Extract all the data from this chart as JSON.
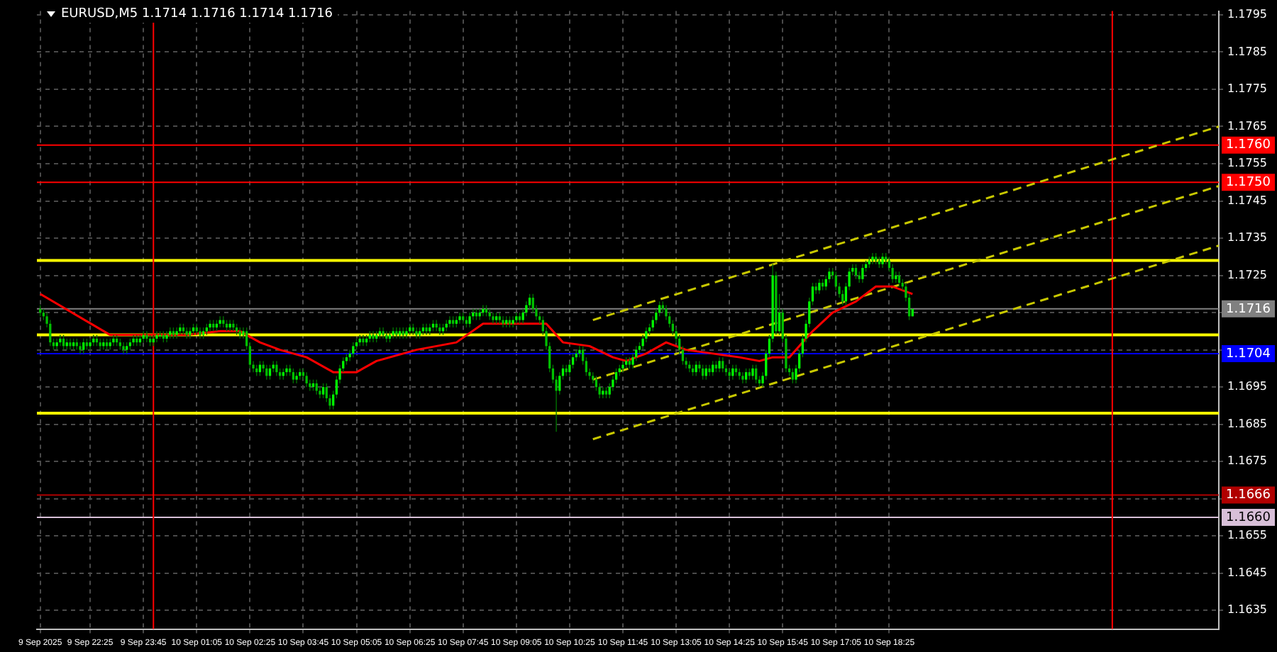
{
  "chart_data": {
    "type": "candlestick",
    "title": "EURUSD,M5 1.1714 1.1716 1.1714 1.1716",
    "x": [
      "2025-09-09T21:10",
      "2025-09-09T21:15",
      "2025-09-09T21:20",
      "2025-09-09T21:25",
      "2025-09-09T21:30",
      "2025-09-09T21:35",
      "2025-09-09T21:40",
      "2025-09-09T21:45",
      "2025-09-09T21:50",
      "2025-09-09T21:55",
      "2025-09-09T22:00",
      "2025-09-09T22:05",
      "2025-09-09T22:10",
      "2025-09-09T22:15",
      "2025-09-09T22:20",
      "2025-09-09T22:25",
      "2025-09-09T22:30",
      "2025-09-09T22:35",
      "2025-09-09T22:40",
      "2025-09-09T22:45",
      "2025-09-09T22:50",
      "2025-09-09T22:55",
      "2025-09-09T23:00",
      "2025-09-09T23:05",
      "2025-09-09T23:10",
      "2025-09-09T23:15",
      "2025-09-09T23:20",
      "2025-09-09T23:25",
      "2025-09-09T23:30",
      "2025-09-09T23:35",
      "2025-09-09T23:40",
      "2025-09-09T23:45",
      "2025-09-09T23:50",
      "2025-09-09T23:55",
      "2025-09-10T00:00",
      "2025-09-10T00:05",
      "2025-09-10T00:10",
      "2025-09-10T00:15",
      "2025-09-10T00:20",
      "2025-09-10T00:25",
      "2025-09-10T00:30",
      "2025-09-10T00:35",
      "2025-09-10T00:40",
      "2025-09-10T00:45",
      "2025-09-10T00:50",
      "2025-09-10T00:55",
      "2025-09-10T01:00",
      "2025-09-10T01:05",
      "2025-09-10T01:10",
      "2025-09-10T01:15",
      "2025-09-10T01:20",
      "2025-09-10T01:25",
      "2025-09-10T01:30",
      "2025-09-10T01:35",
      "2025-09-10T01:40",
      "2025-09-10T01:45",
      "2025-09-10T01:50",
      "2025-09-10T01:55",
      "2025-09-10T02:00",
      "2025-09-10T02:05",
      "2025-09-10T02:10",
      "2025-09-10T02:15",
      "2025-09-10T02:20",
      "2025-09-10T02:25",
      "2025-09-10T02:30",
      "2025-09-10T02:35",
      "2025-09-10T02:40",
      "2025-09-10T02:45",
      "2025-09-10T02:50",
      "2025-09-10T02:55",
      "2025-09-10T03:00",
      "2025-09-10T03:05",
      "2025-09-10T03:10",
      "2025-09-10T03:15",
      "2025-09-10T03:20",
      "2025-09-10T03:25",
      "2025-09-10T03:30",
      "2025-09-10T03:35",
      "2025-09-10T03:40",
      "2025-09-10T03:45",
      "2025-09-10T03:50",
      "2025-09-10T03:55",
      "2025-09-10T04:00",
      "2025-09-10T04:05",
      "2025-09-10T04:10",
      "2025-09-10T04:15",
      "2025-09-10T04:20",
      "2025-09-10T04:25",
      "2025-09-10T04:30",
      "2025-09-10T04:35",
      "2025-09-10T04:40",
      "2025-09-10T04:45",
      "2025-09-10T04:50",
      "2025-09-10T04:55",
      "2025-09-10T05:00",
      "2025-09-10T05:05",
      "2025-09-10T05:10",
      "2025-09-10T05:15",
      "2025-09-10T05:20",
      "2025-09-10T05:25",
      "2025-09-10T05:30",
      "2025-09-10T05:35",
      "2025-09-10T05:40",
      "2025-09-10T05:45",
      "2025-09-10T05:50",
      "2025-09-10T05:55",
      "2025-09-10T06:00",
      "2025-09-10T06:05",
      "2025-09-10T06:10",
      "2025-09-10T06:15",
      "2025-09-10T06:20",
      "2025-09-10T06:25",
      "2025-09-10T06:30",
      "2025-09-10T06:35",
      "2025-09-10T06:40",
      "2025-09-10T06:45",
      "2025-09-10T06:50",
      "2025-09-10T06:55",
      "2025-09-10T07:00",
      "2025-09-10T07:05",
      "2025-09-10T07:10",
      "2025-09-10T07:15",
      "2025-09-10T07:20",
      "2025-09-10T07:25",
      "2025-09-10T07:30",
      "2025-09-10T07:35",
      "2025-09-10T07:40",
      "2025-09-10T07:45",
      "2025-09-10T07:50",
      "2025-09-10T07:55",
      "2025-09-10T08:00",
      "2025-09-10T08:05",
      "2025-09-10T08:10",
      "2025-09-10T08:15",
      "2025-09-10T08:20",
      "2025-09-10T08:25",
      "2025-09-10T08:30",
      "2025-09-10T08:35",
      "2025-09-10T08:40",
      "2025-09-10T08:45",
      "2025-09-10T08:50",
      "2025-09-10T08:55",
      "2025-09-10T09:00",
      "2025-09-10T09:05",
      "2025-09-10T09:10",
      "2025-09-10T09:15",
      "2025-09-10T09:20",
      "2025-09-10T09:25",
      "2025-09-10T09:30",
      "2025-09-10T09:35",
      "2025-09-10T09:40",
      "2025-09-10T09:45",
      "2025-09-10T09:50",
      "2025-09-10T09:55",
      "2025-09-10T10:00",
      "2025-09-10T10:05",
      "2025-09-10T10:10",
      "2025-09-10T10:15",
      "2025-09-10T10:20",
      "2025-09-10T10:25",
      "2025-09-10T10:30",
      "2025-09-10T10:35",
      "2025-09-10T10:40",
      "2025-09-10T10:45",
      "2025-09-10T10:50",
      "2025-09-10T10:55",
      "2025-09-10T11:00",
      "2025-09-10T11:05",
      "2025-09-10T11:10",
      "2025-09-10T11:15",
      "2025-09-10T11:20",
      "2025-09-10T11:25",
      "2025-09-10T11:30",
      "2025-09-10T11:35",
      "2025-09-10T11:40",
      "2025-09-10T11:45",
      "2025-09-10T11:50",
      "2025-09-10T11:55",
      "2025-09-10T12:00",
      "2025-09-10T12:05",
      "2025-09-10T12:10",
      "2025-09-10T12:15",
      "2025-09-10T12:20",
      "2025-09-10T12:25",
      "2025-09-10T12:30",
      "2025-09-10T12:35",
      "2025-09-10T12:40",
      "2025-09-10T12:45",
      "2025-09-10T12:50",
      "2025-09-10T12:55",
      "2025-09-10T13:00",
      "2025-09-10T13:05",
      "2025-09-10T13:10",
      "2025-09-10T13:15",
      "2025-09-10T13:20",
      "2025-09-10T13:25",
      "2025-09-10T13:30",
      "2025-09-10T13:35",
      "2025-09-10T13:40",
      "2025-09-10T13:45",
      "2025-09-10T13:50",
      "2025-09-10T13:55",
      "2025-09-10T14:00",
      "2025-09-10T14:05",
      "2025-09-10T14:10",
      "2025-09-10T14:15",
      "2025-09-10T14:20",
      "2025-09-10T14:25",
      "2025-09-10T14:30",
      "2025-09-10T14:35",
      "2025-09-10T14:40",
      "2025-09-10T14:45",
      "2025-09-10T14:50",
      "2025-09-10T14:55",
      "2025-09-10T15:00",
      "2025-09-10T15:05",
      "2025-09-10T15:10",
      "2025-09-10T15:15",
      "2025-09-10T15:20",
      "2025-09-10T15:25",
      "2025-09-10T15:30",
      "2025-09-10T15:35",
      "2025-09-10T15:40",
      "2025-09-10T15:45",
      "2025-09-10T15:50",
      "2025-09-10T15:55",
      "2025-09-10T16:00",
      "2025-09-10T16:05",
      "2025-09-10T16:10",
      "2025-09-10T16:15",
      "2025-09-10T16:20",
      "2025-09-10T16:25",
      "2025-09-10T16:30",
      "2025-09-10T16:35",
      "2025-09-10T16:40",
      "2025-09-10T16:45",
      "2025-09-10T16:50",
      "2025-09-10T16:55",
      "2025-09-10T17:00",
      "2025-09-10T17:05",
      "2025-09-10T17:10",
      "2025-09-10T17:15",
      "2025-09-10T17:20",
      "2025-09-10T17:25",
      "2025-09-10T17:30",
      "2025-09-10T17:35",
      "2025-09-10T17:40",
      "2025-09-10T17:45",
      "2025-09-10T17:50",
      "2025-09-10T17:55",
      "2025-09-10T18:00",
      "2025-09-10T18:05",
      "2025-09-10T18:10",
      "2025-09-10T18:15",
      "2025-09-10T18:20",
      "2025-09-10T18:25",
      "2025-09-10T18:30",
      "2025-09-10T18:35",
      "2025-09-10T18:40",
      "2025-09-10T18:45",
      "2025-09-10T18:50",
      "2025-09-10T18:55",
      "2025-09-10T19:00"
    ],
    "ohlc": [
      [
        1.1716,
        1.1717,
        1.1714,
        1.1715
      ],
      [
        1.1715,
        1.1716,
        1.1713,
        1.1714
      ],
      [
        1.1714,
        1.1715,
        1.1711,
        1.1712
      ],
      [
        1.1712,
        1.1713,
        1.1706,
        1.1707
      ],
      [
        1.1707,
        1.1708,
        1.1705,
        1.1706
      ],
      [
        1.1706,
        1.1708,
        1.1705,
        1.1707
      ],
      [
        1.1707,
        1.1709,
        1.1706,
        1.1708
      ],
      [
        1.1708,
        1.1709,
        1.1705,
        1.1706
      ],
      [
        1.1706,
        1.1708,
        1.1705,
        1.1707
      ],
      [
        1.1707,
        1.1708,
        1.1705,
        1.1706
      ],
      [
        1.1706,
        1.1708,
        1.1705,
        1.1707
      ],
      [
        1.1707,
        1.1708,
        1.1705,
        1.1706
      ],
      [
        1.1706,
        1.1707,
        1.1704,
        1.1705
      ],
      [
        1.1705,
        1.1708,
        1.1704,
        1.1707
      ],
      [
        1.1707,
        1.1708,
        1.1705,
        1.1706
      ],
      [
        1.1706,
        1.1708,
        1.1705,
        1.1707
      ],
      [
        1.1707,
        1.1709,
        1.1706,
        1.1708
      ],
      [
        1.1708,
        1.1709,
        1.1706,
        1.1707
      ],
      [
        1.1707,
        1.1708,
        1.1705,
        1.1706
      ],
      [
        1.1706,
        1.1708,
        1.1705,
        1.1707
      ],
      [
        1.1707,
        1.1708,
        1.1705,
        1.1706
      ],
      [
        1.1706,
        1.1708,
        1.1705,
        1.1707
      ],
      [
        1.1707,
        1.1709,
        1.1706,
        1.1708
      ],
      [
        1.1708,
        1.1709,
        1.1706,
        1.1707
      ],
      [
        1.1707,
        1.1708,
        1.1705,
        1.1706
      ],
      [
        1.1706,
        1.1707,
        1.1704,
        1.1705
      ],
      [
        1.1705,
        1.1707,
        1.1704,
        1.1706
      ],
      [
        1.1706,
        1.1708,
        1.1705,
        1.1707
      ],
      [
        1.1707,
        1.1709,
        1.1706,
        1.1708
      ],
      [
        1.1708,
        1.1709,
        1.1706,
        1.1707
      ],
      [
        1.1707,
        1.1709,
        1.1706,
        1.1708
      ],
      [
        1.1708,
        1.171,
        1.1707,
        1.1709
      ],
      [
        1.1709,
        1.171,
        1.1707,
        1.1708
      ],
      [
        1.1708,
        1.1709,
        1.1706,
        1.1707
      ],
      [
        1.1707,
        1.1709,
        1.1706,
        1.1708
      ],
      [
        1.1708,
        1.171,
        1.1707,
        1.1709
      ],
      [
        1.1709,
        1.171,
        1.1708,
        1.1709
      ],
      [
        1.1709,
        1.171,
        1.1707,
        1.1708
      ],
      [
        1.1708,
        1.171,
        1.1707,
        1.1709
      ],
      [
        1.1709,
        1.1711,
        1.1708,
        1.171
      ],
      [
        1.171,
        1.1711,
        1.1708,
        1.1709
      ],
      [
        1.1709,
        1.1711,
        1.1708,
        1.171
      ],
      [
        1.171,
        1.1712,
        1.1709,
        1.1711
      ],
      [
        1.1711,
        1.1712,
        1.1709,
        1.171
      ],
      [
        1.171,
        1.1711,
        1.1708,
        1.1709
      ],
      [
        1.1709,
        1.1711,
        1.1708,
        1.171
      ],
      [
        1.171,
        1.1712,
        1.1709,
        1.1711
      ],
      [
        1.1711,
        1.1712,
        1.1709,
        1.171
      ],
      [
        1.171,
        1.1711,
        1.1708,
        1.1709
      ],
      [
        1.1709,
        1.1711,
        1.1708,
        1.171
      ],
      [
        1.171,
        1.1712,
        1.1709,
        1.1711
      ],
      [
        1.1711,
        1.1713,
        1.171,
        1.1712
      ],
      [
        1.1712,
        1.1713,
        1.171,
        1.1711
      ],
      [
        1.1711,
        1.1713,
        1.171,
        1.1712
      ],
      [
        1.1712,
        1.1714,
        1.1711,
        1.1713
      ],
      [
        1.1713,
        1.1714,
        1.1711,
        1.1712
      ],
      [
        1.1712,
        1.1713,
        1.171,
        1.1711
      ],
      [
        1.1711,
        1.1713,
        1.171,
        1.1712
      ],
      [
        1.1712,
        1.1713,
        1.171,
        1.1711
      ],
      [
        1.1711,
        1.1712,
        1.1709,
        1.171
      ],
      [
        1.171,
        1.1711,
        1.1708,
        1.1709
      ],
      [
        1.1709,
        1.1711,
        1.1708,
        1.171
      ],
      [
        1.171,
        1.1711,
        1.1705,
        1.1706
      ],
      [
        1.1706,
        1.1707,
        1.17,
        1.1701
      ],
      [
        1.1701,
        1.1702,
        1.1699,
        1.17
      ],
      [
        1.17,
        1.1701,
        1.1698,
        1.1699
      ],
      [
        1.1699,
        1.1702,
        1.1698,
        1.1701
      ],
      [
        1.1701,
        1.1702,
        1.1699,
        1.17
      ],
      [
        1.17,
        1.1701,
        1.1697,
        1.1698
      ],
      [
        1.1698,
        1.1701,
        1.1697,
        1.17
      ],
      [
        1.17,
        1.1702,
        1.1699,
        1.1701
      ],
      [
        1.1701,
        1.1702,
        1.1698,
        1.1699
      ],
      [
        1.1699,
        1.17,
        1.1697,
        1.1698
      ],
      [
        1.1698,
        1.17,
        1.1697,
        1.1699
      ],
      [
        1.1699,
        1.1701,
        1.1698,
        1.17
      ],
      [
        1.17,
        1.1701,
        1.1698,
        1.1699
      ],
      [
        1.1699,
        1.17,
        1.1696,
        1.1697
      ],
      [
        1.1697,
        1.1699,
        1.1696,
        1.1698
      ],
      [
        1.1698,
        1.17,
        1.1697,
        1.1699
      ],
      [
        1.1699,
        1.17,
        1.1697,
        1.1698
      ],
      [
        1.1698,
        1.1699,
        1.1695,
        1.1696
      ],
      [
        1.1696,
        1.1697,
        1.1694,
        1.1695
      ],
      [
        1.1695,
        1.1697,
        1.1694,
        1.1696
      ],
      [
        1.1696,
        1.1697,
        1.1693,
        1.1694
      ],
      [
        1.1694,
        1.1695,
        1.1692,
        1.1693
      ],
      [
        1.1693,
        1.1696,
        1.1692,
        1.1695
      ],
      [
        1.1695,
        1.1696,
        1.1691,
        1.1692
      ],
      [
        1.1692,
        1.1693,
        1.1689,
        1.169
      ],
      [
        1.169,
        1.1694,
        1.1689,
        1.1693
      ],
      [
        1.1693,
        1.1698,
        1.1692,
        1.1697
      ],
      [
        1.1697,
        1.1701,
        1.1696,
        1.17
      ],
      [
        1.17,
        1.1703,
        1.1699,
        1.1702
      ],
      [
        1.1702,
        1.1704,
        1.1701,
        1.1703
      ],
      [
        1.1703,
        1.1705,
        1.1702,
        1.1704
      ],
      [
        1.1704,
        1.1707,
        1.1703,
        1.1706
      ],
      [
        1.1706,
        1.1708,
        1.1705,
        1.1707
      ],
      [
        1.1707,
        1.1709,
        1.1706,
        1.1708
      ],
      [
        1.1708,
        1.1709,
        1.1706,
        1.1707
      ],
      [
        1.1707,
        1.1709,
        1.1706,
        1.1708
      ],
      [
        1.1708,
        1.171,
        1.1707,
        1.1709
      ],
      [
        1.1709,
        1.171,
        1.1707,
        1.1708
      ],
      [
        1.1708,
        1.171,
        1.1707,
        1.1709
      ],
      [
        1.1709,
        1.1711,
        1.1708,
        1.171
      ],
      [
        1.171,
        1.1711,
        1.1708,
        1.1709
      ],
      [
        1.1709,
        1.171,
        1.1707,
        1.1708
      ],
      [
        1.1708,
        1.171,
        1.1707,
        1.1709
      ],
      [
        1.1709,
        1.1711,
        1.1708,
        1.171
      ],
      [
        1.171,
        1.1711,
        1.1708,
        1.1709
      ],
      [
        1.1709,
        1.1711,
        1.1708,
        1.171
      ],
      [
        1.171,
        1.1711,
        1.1708,
        1.1709
      ],
      [
        1.1709,
        1.1711,
        1.1708,
        1.171
      ],
      [
        1.171,
        1.1712,
        1.1709,
        1.1711
      ],
      [
        1.1711,
        1.1712,
        1.1709,
        1.171
      ],
      [
        1.171,
        1.1711,
        1.1708,
        1.1709
      ],
      [
        1.1709,
        1.1711,
        1.1708,
        1.171
      ],
      [
        1.171,
        1.1712,
        1.1709,
        1.1711
      ],
      [
        1.1711,
        1.1712,
        1.1709,
        1.171
      ],
      [
        1.171,
        1.1712,
        1.1709,
        1.1711
      ],
      [
        1.1711,
        1.1713,
        1.171,
        1.1712
      ],
      [
        1.1712,
        1.1713,
        1.171,
        1.1711
      ],
      [
        1.1711,
        1.1712,
        1.1709,
        1.171
      ],
      [
        1.171,
        1.1712,
        1.1709,
        1.1711
      ],
      [
        1.1711,
        1.1713,
        1.171,
        1.1712
      ],
      [
        1.1712,
        1.1714,
        1.1711,
        1.1713
      ],
      [
        1.1713,
        1.1714,
        1.1711,
        1.1712
      ],
      [
        1.1712,
        1.1714,
        1.1711,
        1.1713
      ],
      [
        1.1713,
        1.1715,
        1.1712,
        1.1714
      ],
      [
        1.1714,
        1.1715,
        1.1712,
        1.1713
      ],
      [
        1.1713,
        1.1714,
        1.1711,
        1.1712
      ],
      [
        1.1712,
        1.1715,
        1.1711,
        1.1714
      ],
      [
        1.1714,
        1.1716,
        1.1713,
        1.1715
      ],
      [
        1.1715,
        1.1716,
        1.1713,
        1.1714
      ],
      [
        1.1714,
        1.1716,
        1.1713,
        1.1715
      ],
      [
        1.1715,
        1.1717,
        1.1714,
        1.1716
      ],
      [
        1.1716,
        1.1717,
        1.1714,
        1.1715
      ],
      [
        1.1715,
        1.1716,
        1.1713,
        1.1714
      ],
      [
        1.1714,
        1.1715,
        1.1712,
        1.1713
      ],
      [
        1.1713,
        1.1715,
        1.1712,
        1.1714
      ],
      [
        1.1714,
        1.1715,
        1.1712,
        1.1713
      ],
      [
        1.1713,
        1.1714,
        1.1711,
        1.1712
      ],
      [
        1.1712,
        1.1714,
        1.1711,
        1.1713
      ],
      [
        1.1713,
        1.1714,
        1.1711,
        1.1712
      ],
      [
        1.1712,
        1.1714,
        1.1711,
        1.1713
      ],
      [
        1.1713,
        1.1715,
        1.1712,
        1.1714
      ],
      [
        1.1714,
        1.1715,
        1.1712,
        1.1713
      ],
      [
        1.1713,
        1.1716,
        1.1712,
        1.1715
      ],
      [
        1.1715,
        1.1718,
        1.1714,
        1.1717
      ],
      [
        1.1717,
        1.172,
        1.1716,
        1.1719
      ],
      [
        1.1719,
        1.172,
        1.1715,
        1.1716
      ],
      [
        1.1716,
        1.1717,
        1.1713,
        1.1714
      ],
      [
        1.1714,
        1.1715,
        1.1712,
        1.1713
      ],
      [
        1.1713,
        1.1714,
        1.1709,
        1.171
      ],
      [
        1.171,
        1.1711,
        1.1705,
        1.1706
      ],
      [
        1.1706,
        1.1707,
        1.1699,
        1.17
      ],
      [
        1.17,
        1.1701,
        1.1696,
        1.1697
      ],
      [
        1.1697,
        1.1698,
        1.1683,
        1.1694
      ],
      [
        1.1694,
        1.1699,
        1.1693,
        1.1698
      ],
      [
        1.1698,
        1.1701,
        1.1697,
        1.17
      ],
      [
        1.17,
        1.1701,
        1.1698,
        1.1699
      ],
      [
        1.1699,
        1.1702,
        1.1698,
        1.1701
      ],
      [
        1.1701,
        1.1704,
        1.17,
        1.1703
      ],
      [
        1.1703,
        1.1705,
        1.1702,
        1.1704
      ],
      [
        1.1704,
        1.1706,
        1.1703,
        1.1705
      ],
      [
        1.1705,
        1.1706,
        1.1701,
        1.1702
      ],
      [
        1.1702,
        1.1703,
        1.1698,
        1.1699
      ],
      [
        1.1699,
        1.17,
        1.1697,
        1.1698
      ],
      [
        1.1698,
        1.1699,
        1.1696,
        1.1697
      ],
      [
        1.1697,
        1.1698,
        1.1694,
        1.1695
      ],
      [
        1.1695,
        1.1696,
        1.1692,
        1.1693
      ],
      [
        1.1693,
        1.1695,
        1.1692,
        1.1694
      ],
      [
        1.1694,
        1.1695,
        1.1692,
        1.1693
      ],
      [
        1.1693,
        1.1696,
        1.1692,
        1.1695
      ],
      [
        1.1695,
        1.1698,
        1.1694,
        1.1697
      ],
      [
        1.1697,
        1.17,
        1.1696,
        1.1699
      ],
      [
        1.1699,
        1.1701,
        1.1698,
        1.17
      ],
      [
        1.17,
        1.1702,
        1.1699,
        1.1701
      ],
      [
        1.1701,
        1.1703,
        1.17,
        1.1702
      ],
      [
        1.1702,
        1.1703,
        1.17,
        1.1701
      ],
      [
        1.1701,
        1.1704,
        1.17,
        1.1703
      ],
      [
        1.1703,
        1.1706,
        1.1702,
        1.1705
      ],
      [
        1.1705,
        1.1707,
        1.1704,
        1.1706
      ],
      [
        1.1706,
        1.1709,
        1.1705,
        1.1708
      ],
      [
        1.1708,
        1.1711,
        1.1707,
        1.171
      ],
      [
        1.171,
        1.1712,
        1.1709,
        1.1711
      ],
      [
        1.1711,
        1.1714,
        1.171,
        1.1713
      ],
      [
        1.1713,
        1.1716,
        1.1712,
        1.1715
      ],
      [
        1.1715,
        1.1718,
        1.1714,
        1.1717
      ],
      [
        1.1717,
        1.1718,
        1.1715,
        1.1716
      ],
      [
        1.1716,
        1.1717,
        1.1713,
        1.1714
      ],
      [
        1.1714,
        1.1715,
        1.1711,
        1.1712
      ],
      [
        1.1712,
        1.1713,
        1.1709,
        1.171
      ],
      [
        1.171,
        1.1711,
        1.1707,
        1.1708
      ],
      [
        1.1708,
        1.1709,
        1.1704,
        1.1705
      ],
      [
        1.1705,
        1.1706,
        1.1701,
        1.1702
      ],
      [
        1.1702,
        1.1703,
        1.17,
        1.1701
      ],
      [
        1.1701,
        1.1702,
        1.1699,
        1.17
      ],
      [
        1.17,
        1.1701,
        1.1698,
        1.1699
      ],
      [
        1.1699,
        1.1702,
        1.1698,
        1.1701
      ],
      [
        1.1701,
        1.1702,
        1.1699,
        1.17
      ],
      [
        1.17,
        1.1701,
        1.1697,
        1.1698
      ],
      [
        1.1698,
        1.1701,
        1.1697,
        1.17
      ],
      [
        1.17,
        1.1701,
        1.1698,
        1.1699
      ],
      [
        1.1699,
        1.1702,
        1.1698,
        1.1701
      ],
      [
        1.1701,
        1.1702,
        1.1699,
        1.17
      ],
      [
        1.17,
        1.1703,
        1.1699,
        1.1702
      ],
      [
        1.1702,
        1.1703,
        1.1699,
        1.17
      ],
      [
        1.17,
        1.1701,
        1.1698,
        1.1699
      ],
      [
        1.1699,
        1.17,
        1.1697,
        1.1698
      ],
      [
        1.1698,
        1.1701,
        1.1697,
        1.17
      ],
      [
        1.17,
        1.1701,
        1.1698,
        1.1699
      ],
      [
        1.1699,
        1.17,
        1.1697,
        1.1698
      ],
      [
        1.1698,
        1.1699,
        1.1696,
        1.1697
      ],
      [
        1.1697,
        1.17,
        1.1696,
        1.1699
      ],
      [
        1.1699,
        1.17,
        1.1697,
        1.1698
      ],
      [
        1.1698,
        1.1701,
        1.1697,
        1.17
      ],
      [
        1.17,
        1.1701,
        1.1696,
        1.1697
      ],
      [
        1.1697,
        1.1698,
        1.1695,
        1.1696
      ],
      [
        1.1696,
        1.1699,
        1.1695,
        1.1698
      ],
      [
        1.1698,
        1.1705,
        1.1697,
        1.1704
      ],
      [
        1.1704,
        1.1709,
        1.1703,
        1.1708
      ],
      [
        1.1708,
        1.1728,
        1.1707,
        1.1725
      ],
      [
        1.1725,
        1.1726,
        1.1709,
        1.171
      ],
      [
        1.171,
        1.172,
        1.1709,
        1.1715
      ],
      [
        1.1715,
        1.1716,
        1.1707,
        1.1708
      ],
      [
        1.1708,
        1.1709,
        1.1699,
        1.17
      ],
      [
        1.17,
        1.1701,
        1.1698,
        1.1699
      ],
      [
        1.1699,
        1.17,
        1.1696,
        1.1697
      ],
      [
        1.1697,
        1.1701,
        1.1696,
        1.17
      ],
      [
        1.17,
        1.1705,
        1.1699,
        1.1704
      ],
      [
        1.1704,
        1.1709,
        1.1703,
        1.1708
      ],
      [
        1.1708,
        1.1713,
        1.1707,
        1.1712
      ],
      [
        1.1712,
        1.1719,
        1.1711,
        1.1718
      ],
      [
        1.1718,
        1.1723,
        1.1717,
        1.1722
      ],
      [
        1.1722,
        1.1723,
        1.172,
        1.1721
      ],
      [
        1.1721,
        1.1724,
        1.172,
        1.1723
      ],
      [
        1.1723,
        1.1724,
        1.1721,
        1.1722
      ],
      [
        1.1722,
        1.1725,
        1.1721,
        1.1724
      ],
      [
        1.1724,
        1.1727,
        1.1723,
        1.1726
      ],
      [
        1.1726,
        1.1727,
        1.1724,
        1.1725
      ],
      [
        1.1725,
        1.1726,
        1.1721,
        1.1722
      ],
      [
        1.1722,
        1.1723,
        1.1719,
        1.172
      ],
      [
        1.172,
        1.1721,
        1.1717,
        1.1718
      ],
      [
        1.1718,
        1.1723,
        1.1717,
        1.1722
      ],
      [
        1.1722,
        1.1727,
        1.1721,
        1.1726
      ],
      [
        1.1726,
        1.1728,
        1.1725,
        1.1727
      ],
      [
        1.1727,
        1.1728,
        1.1724,
        1.1725
      ],
      [
        1.1725,
        1.1726,
        1.1723,
        1.1724
      ],
      [
        1.1724,
        1.1728,
        1.1723,
        1.1727
      ],
      [
        1.1727,
        1.1729,
        1.1726,
        1.1728
      ],
      [
        1.1728,
        1.173,
        1.1727,
        1.1729
      ],
      [
        1.1729,
        1.1731,
        1.1728,
        1.173
      ],
      [
        1.173,
        1.1731,
        1.1728,
        1.1729
      ],
      [
        1.1729,
        1.173,
        1.1727,
        1.1728
      ],
      [
        1.1728,
        1.1731,
        1.1727,
        1.173
      ],
      [
        1.173,
        1.1731,
        1.1728,
        1.1729
      ],
      [
        1.1729,
        1.173,
        1.1726,
        1.1727
      ],
      [
        1.1727,
        1.1728,
        1.1723,
        1.1724
      ],
      [
        1.1724,
        1.1726,
        1.1723,
        1.1725
      ],
      [
        1.1725,
        1.1726,
        1.1722,
        1.1723
      ],
      [
        1.1723,
        1.1724,
        1.1721,
        1.1722
      ],
      [
        1.1722,
        1.1723,
        1.1718,
        1.1719
      ],
      [
        1.1719,
        1.172,
        1.1713,
        1.1714
      ],
      [
        1.1714,
        1.1716,
        1.1714,
        1.1716
      ]
    ],
    "xlim": [
      "2025-09-09T21:05",
      "2025-09-11T02:40"
    ],
    "xticks": [
      {
        "value": "2025-09-09T21:10",
        "label": "9 Sep 2025"
      },
      {
        "value": "2025-09-09T22:25",
        "label": "9 Sep 22:25"
      },
      {
        "value": "2025-09-09T23:45",
        "label": "9 Sep 23:45"
      },
      {
        "value": "2025-09-10T01:05",
        "label": "10 Sep 01:05"
      },
      {
        "value": "2025-09-10T02:25",
        "label": "10 Sep 02:25"
      },
      {
        "value": "2025-09-10T03:45",
        "label": "10 Sep 03:45"
      },
      {
        "value": "2025-09-10T05:05",
        "label": "10 Sep 05:05"
      },
      {
        "value": "2025-09-10T06:25",
        "label": "10 Sep 06:25"
      },
      {
        "value": "2025-09-10T07:45",
        "label": "10 Sep 07:45"
      },
      {
        "value": "2025-09-10T09:05",
        "label": "10 Sep 09:05"
      },
      {
        "value": "2025-09-10T10:25",
        "label": "10 Sep 10:25"
      },
      {
        "value": "2025-09-10T11:45",
        "label": "10 Sep 11:45"
      },
      {
        "value": "2025-09-10T13:05",
        "label": "10 Sep 13:05"
      },
      {
        "value": "2025-09-10T14:25",
        "label": "10 Sep 14:25"
      },
      {
        "value": "2025-09-10T15:45",
        "label": "10 Sep 15:45"
      },
      {
        "value": "2025-09-10T17:05",
        "label": "10 Sep 17:05"
      },
      {
        "value": "2025-09-10T18:25",
        "label": "10 Sep 18:25"
      }
    ],
    "ylim": [
      1.163,
      1.1796
    ],
    "yticks": [
      1.1635,
      1.1645,
      1.1655,
      {
        "value": 1.1665,
        "label": null
      },
      1.1675,
      1.1685,
      1.1695,
      {
        "value": 1.1705,
        "label": null
      },
      {
        "value": 1.1715,
        "label": null
      },
      1.1725,
      1.1735,
      1.1745,
      1.1755,
      1.1765,
      1.1775,
      1.1785,
      1.1795
    ],
    "grid": true,
    "series": [
      {
        "type": "line",
        "color": "#ff0000",
        "x": [
          "2025-09-09T21:10",
          "2025-09-09T22:55",
          "2025-09-10T00:50",
          "2025-09-10T01:40",
          "2025-09-10T02:10",
          "2025-09-10T02:40",
          "2025-09-10T03:10",
          "2025-09-10T03:50",
          "2025-09-10T04:30",
          "2025-09-10T05:05",
          "2025-09-10T05:35",
          "2025-09-10T06:35",
          "2025-09-10T07:35",
          "2025-09-10T08:15",
          "2025-09-10T08:45",
          "2025-09-10T09:20",
          "2025-09-10T09:50",
          "2025-09-10T10:15",
          "2025-09-10T10:55",
          "2025-09-10T11:30",
          "2025-09-10T11:50",
          "2025-09-10T12:20",
          "2025-09-10T12:50",
          "2025-09-10T13:20",
          "2025-09-10T14:00",
          "2025-09-10T14:40",
          "2025-09-10T15:10",
          "2025-09-10T15:30",
          "2025-09-10T15:55",
          "2025-09-10T16:10",
          "2025-09-10T16:30",
          "2025-09-10T17:00",
          "2025-09-10T17:35",
          "2025-09-10T18:05",
          "2025-09-10T18:30",
          "2025-09-10T19:00"
        ],
        "values": [
          1.172,
          1.1709,
          1.1709,
          1.171,
          1.171,
          1.1707,
          1.1705,
          1.1703,
          1.1699,
          1.1699,
          1.1702,
          1.1705,
          1.1707,
          1.1712,
          1.1712,
          1.1712,
          1.1712,
          1.1707,
          1.1706,
          1.1703,
          1.1702,
          1.1704,
          1.1707,
          1.1705,
          1.1704,
          1.1703,
          1.1702,
          1.1703,
          1.1703,
          1.1706,
          1.171,
          1.1715,
          1.1718,
          1.1722,
          1.1722,
          1.172
        ]
      },
      {
        "type": "line",
        "color": "#c8c800",
        "line_style": "dashed",
        "x": [
          "2025-09-10T11:00",
          "2025-09-11T02:40"
        ],
        "values": [
          1.1713,
          1.1765
        ]
      },
      {
        "type": "line",
        "color": "#c8c800",
        "line_style": "dashed",
        "x": [
          "2025-09-10T11:00",
          "2025-09-11T02:40"
        ],
        "values": [
          1.1697,
          1.1749
        ]
      },
      {
        "type": "line",
        "color": "#c8c800",
        "line_style": "dashed",
        "x": [
          "2025-09-10T11:00",
          "2025-09-11T02:40"
        ],
        "values": [
          1.1681,
          1.1733
        ]
      }
    ],
    "ref_lines": [
      {
        "axis": "y",
        "value": 1.176,
        "label": "1.1760",
        "color": "#ff0000"
      },
      {
        "axis": "y",
        "value": 1.175,
        "label": "1.1750",
        "color": "#ff0000"
      },
      {
        "axis": "y",
        "value": 1.1729,
        "color": "#ffff00"
      },
      {
        "axis": "y",
        "value": 1.1716,
        "label": "1.1716",
        "color": "#808080"
      },
      {
        "axis": "y",
        "value": 1.1709,
        "color": "#ffff00"
      },
      {
        "axis": "y",
        "value": 1.1704,
        "label": "1.1704",
        "color": "#0000ff"
      },
      {
        "axis": "y",
        "value": 1.1688,
        "color": "#ffff00"
      },
      {
        "axis": "y",
        "value": 1.1666,
        "label": "1.1666",
        "color": "#b00000"
      },
      {
        "axis": "y",
        "value": 1.166,
        "label": "1.1660",
        "color": "#d8bfd8"
      },
      {
        "axis": "x",
        "value": "2025-09-10T00:00",
        "color": "#ff0000"
      },
      {
        "axis": "x",
        "value": "2025-09-11T00:00",
        "color": "#ff0000"
      }
    ]
  }
}
